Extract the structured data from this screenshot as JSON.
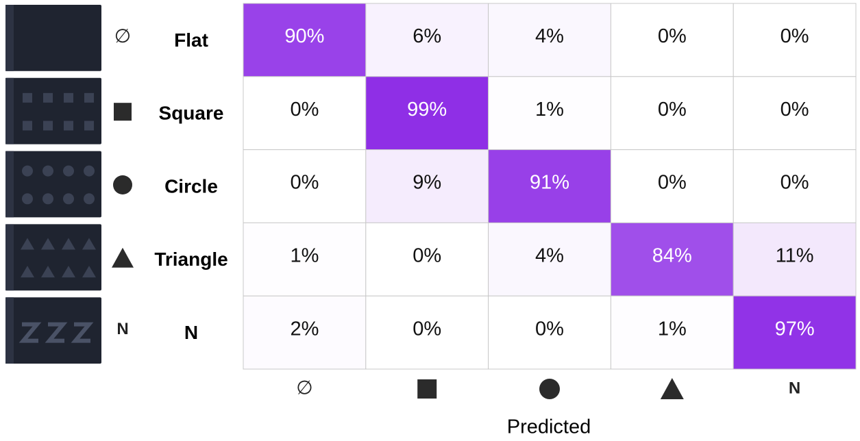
{
  "chart_data": {
    "type": "heatmap",
    "rows": [
      "Flat",
      "Square",
      "Circle",
      "Triangle",
      "N"
    ],
    "row_markers": [
      "∅",
      null,
      null,
      null,
      "N"
    ],
    "column_markers": [
      "∅",
      null,
      null,
      null,
      "N"
    ],
    "x_label": "Predicted",
    "values": [
      [
        90,
        6,
        4,
        0,
        0
      ],
      [
        0,
        99,
        1,
        0,
        0
      ],
      [
        0,
        9,
        91,
        0,
        0
      ],
      [
        1,
        0,
        4,
        84,
        11
      ],
      [
        2,
        0,
        0,
        1,
        97
      ]
    ],
    "value_labels": [
      [
        "90%",
        "6%",
        "4%",
        "0%",
        "0%"
      ],
      [
        "0%",
        "99%",
        "1%",
        "0%",
        "0%"
      ],
      [
        "0%",
        "9%",
        "91%",
        "0%",
        "0%"
      ],
      [
        "1%",
        "0%",
        "4%",
        "84%",
        "11%"
      ],
      [
        "2%",
        "0%",
        "0%",
        "1%",
        "97%"
      ]
    ],
    "color": "#8e2de6"
  }
}
